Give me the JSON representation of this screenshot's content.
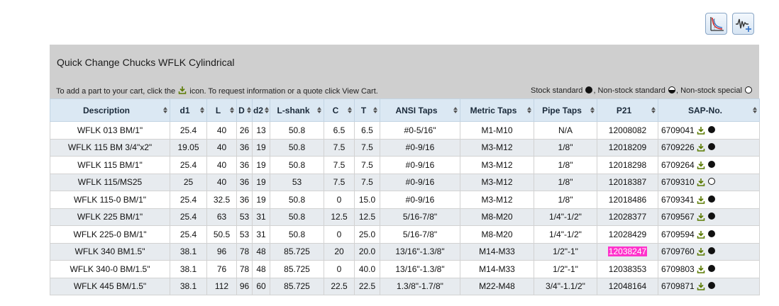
{
  "toolbar": {
    "icons": [
      "chart-curve-icon",
      "waveform-add-icon"
    ]
  },
  "panel": {
    "title": "Quick Change Chucks WFLK Cylindrical",
    "cart_text_before": "To add a part to your cart, click the",
    "cart_text_after": "icon. To request information or a quote click View Cart.",
    "legend_stock_standard": "Stock standard",
    "legend_nonstock_standard": ", Non-stock standard",
    "legend_nonstock_special": ", Non-stock special"
  },
  "colors": {
    "header_bg": "#dbe8f3",
    "panel_bg": "#cfcfcf",
    "alt_row": "#e7ebef",
    "highlight": "#ff33cc",
    "download_icon": "#5a7a00"
  },
  "table": {
    "columns": [
      "Description",
      "d1",
      "L",
      "D",
      "d2",
      "L-shank",
      "C",
      "T",
      "ANSI Taps",
      "Metric Taps",
      "Pipe Taps",
      "P21",
      "SAP-No."
    ],
    "rows": [
      {
        "description": "WFLK 013 BM/1\"",
        "d1": "25.4",
        "L": "40",
        "D": "26",
        "d2": "13",
        "lshank": "50.8",
        "C": "6.5",
        "T": "6.5",
        "ansi": "#0-5/16\"",
        "metric": "M1-M10",
        "pipe": "N/A",
        "p21": "12008082",
        "sap": "6709041",
        "availability": "stock"
      },
      {
        "description": "WFLK 115 BM 3/4\"x2\"",
        "d1": "19.05",
        "L": "40",
        "D": "36",
        "d2": "19",
        "lshank": "50.8",
        "C": "7.5",
        "T": "7.5",
        "ansi": "#0-9/16",
        "metric": "M3-M12",
        "pipe": "1/8\"",
        "p21": "12018209",
        "sap": "6709226",
        "availability": "stock"
      },
      {
        "description": "WFLK 115 BM/1\"",
        "d1": "25.4",
        "L": "40",
        "D": "36",
        "d2": "19",
        "lshank": "50.8",
        "C": "7.5",
        "T": "7.5",
        "ansi": "#0-9/16",
        "metric": "M3-M12",
        "pipe": "1/8\"",
        "p21": "12018298",
        "sap": "6709264",
        "availability": "stock"
      },
      {
        "description": "WFLK 115/MS25",
        "d1": "25",
        "L": "40",
        "D": "36",
        "d2": "19",
        "lshank": "53",
        "C": "7.5",
        "T": "7.5",
        "ansi": "#0-9/16",
        "metric": "M3-M12",
        "pipe": "1/8\"",
        "p21": "12018387",
        "sap": "6709310",
        "availability": "special"
      },
      {
        "description": "WFLK 115-0 BM/1\"",
        "d1": "25.4",
        "L": "32.5",
        "D": "36",
        "d2": "19",
        "lshank": "50.8",
        "C": "0",
        "T": "15.0",
        "ansi": "#0-9/16",
        "metric": "M3-M12",
        "pipe": "1/8\"",
        "p21": "12018486",
        "sap": "6709341",
        "availability": "stock"
      },
      {
        "description": "WFLK 225 BM/1\"",
        "d1": "25.4",
        "L": "63",
        "D": "53",
        "d2": "31",
        "lshank": "50.8",
        "C": "12.5",
        "T": "12.5",
        "ansi": "5/16-7/8\"",
        "metric": "M8-M20",
        "pipe": "1/4\"-1/2\"",
        "p21": "12028377",
        "sap": "6709567",
        "availability": "stock"
      },
      {
        "description": "WFLK 225-0 BM/1\"",
        "d1": "25.4",
        "L": "50.5",
        "D": "53",
        "d2": "31",
        "lshank": "50.8",
        "C": "0",
        "T": "25.0",
        "ansi": "5/16-7/8\"",
        "metric": "M8-M20",
        "pipe": "1/4\"-1/2\"",
        "p21": "12028429",
        "sap": "6709594",
        "availability": "stock"
      },
      {
        "description": "WFLK 340 BM1.5\"",
        "d1": "38.1",
        "L": "96",
        "D": "78",
        "d2": "48",
        "lshank": "85.725",
        "C": "20",
        "T": "20.0",
        "ansi": "13/16\"-1.3/8\"",
        "metric": "M14-M33",
        "pipe": "1/2\"-1\"",
        "p21": "12038247",
        "sap": "6709760",
        "availability": "stock",
        "p21_highlight": true
      },
      {
        "description": "WFLK 340-0 BM/1.5\"",
        "d1": "38.1",
        "L": "76",
        "D": "78",
        "d2": "48",
        "lshank": "85.725",
        "C": "0",
        "T": "40.0",
        "ansi": "13/16\"-1.3/8\"",
        "metric": "M14-M33",
        "pipe": "1/2\"-1\"",
        "p21": "12038353",
        "sap": "6709803",
        "availability": "stock"
      },
      {
        "description": "WFLK 445 BM/1.5\"",
        "d1": "38.1",
        "L": "112",
        "D": "96",
        "d2": "60",
        "lshank": "85.725",
        "C": "22.5",
        "T": "22.5",
        "ansi": "1.3/8\"-1.7/8\"",
        "metric": "M22-M48",
        "pipe": "3/4\"-1.1/2\"",
        "p21": "12048164",
        "sap": "6709871",
        "availability": "stock"
      }
    ]
  }
}
